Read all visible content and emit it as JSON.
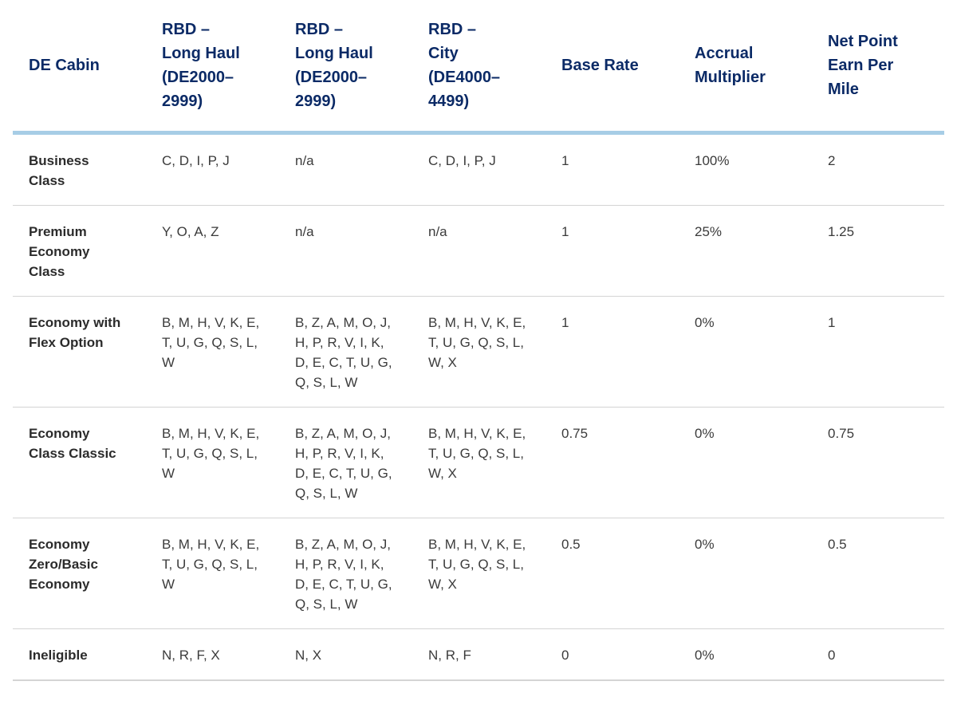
{
  "columns": [
    "DE Cabin",
    "RBD –\nLong Haul\n(DE2000–\n2999)",
    "RBD –\nLong Haul\n(DE2000–\n2999)",
    "RBD –\nCity\n(DE4000–\n4499)",
    "Base Rate",
    "Accrual\nMultiplier",
    "Net Point\nEarn Per\nMile"
  ],
  "rows": [
    {
      "cabin": "Business\nClass",
      "rbd_long_haul_1": "C, D, I, P, J",
      "rbd_long_haul_2": "n/a",
      "rbd_city": "C, D, I, P, J",
      "base_rate": "1",
      "accrual_multiplier": "100%",
      "net_points": "2"
    },
    {
      "cabin": "Premium\nEconomy\nClass",
      "rbd_long_haul_1": "Y, O, A, Z",
      "rbd_long_haul_2": "n/a",
      "rbd_city": "n/a",
      "base_rate": "1",
      "accrual_multiplier": "25%",
      "net_points": "1.25"
    },
    {
      "cabin": "Economy with\nFlex Option",
      "rbd_long_haul_1": "B, M, H, V, K, E,\nT, U, G, Q, S, L,\nW",
      "rbd_long_haul_2": "B, Z, A, M, O, J,\nH, P, R, V, I, K,\nD, E, C, T, U, G,\nQ, S, L, W",
      "rbd_city": "B, M, H, V, K, E,\nT, U, G, Q, S, L,\nW, X",
      "base_rate": "1",
      "accrual_multiplier": "0%",
      "net_points": "1"
    },
    {
      "cabin": "Economy\nClass Classic",
      "rbd_long_haul_1": "B, M, H, V, K, E,\nT, U, G, Q, S, L,\nW",
      "rbd_long_haul_2": "B, Z, A, M, O, J,\nH, P, R, V, I, K,\nD, E, C, T, U, G,\nQ, S, L, W",
      "rbd_city": "B, M, H, V, K, E,\nT, U, G, Q, S, L,\nW, X",
      "base_rate": "0.75",
      "accrual_multiplier": "0%",
      "net_points": "0.75"
    },
    {
      "cabin": "Economy\nZero/Basic\nEconomy",
      "rbd_long_haul_1": "B, M, H, V, K, E,\nT, U, G, Q, S, L,\nW",
      "rbd_long_haul_2": "B, Z, A, M, O, J,\nH, P, R, V, I, K,\nD, E, C, T, U, G,\nQ, S, L, W",
      "rbd_city": "B, M, H, V, K, E,\nT, U, G, Q, S, L,\nW, X",
      "base_rate": "0.5",
      "accrual_multiplier": "0%",
      "net_points": "0.5"
    },
    {
      "cabin": "Ineligible",
      "rbd_long_haul_1": "N, R, F, X",
      "rbd_long_haul_2": "N, X",
      "rbd_city": "N, R, F",
      "base_rate": "0",
      "accrual_multiplier": "0%",
      "net_points": "0"
    }
  ],
  "colors": {
    "header_text": "#0b2a66",
    "header_rule": "#a7cde6",
    "row_rule": "#d4d4d4",
    "body_text": "#3b3b3b"
  }
}
